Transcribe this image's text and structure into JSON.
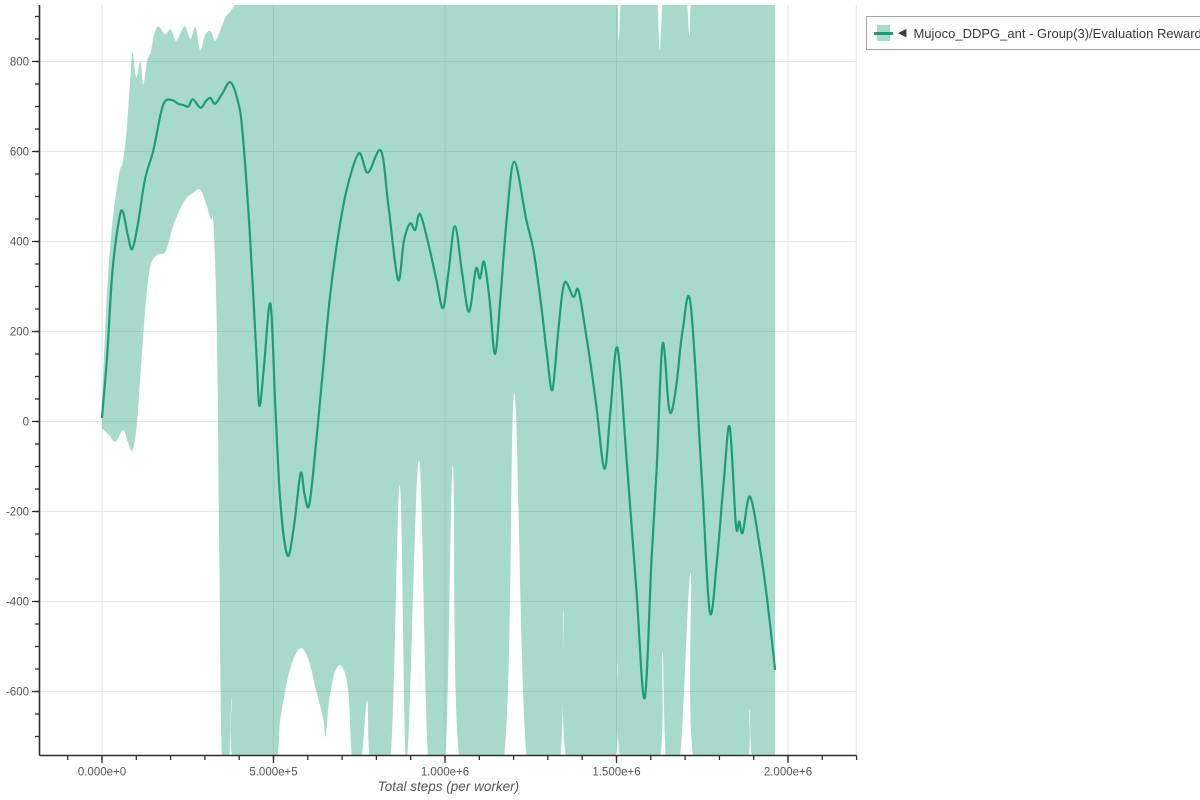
{
  "page": {
    "background": "#ffffff"
  },
  "legend": {
    "marker": "◀",
    "label": "Mujoco_DDPG_ant - Group(3)/Evaluation Reward"
  },
  "colors": {
    "line": "#1b9e77",
    "band": "rgba(27,158,119,0.38)",
    "grid": "#e6e6e6",
    "axis": "#2f2f2f",
    "tick_label": "#555555",
    "axis_title": "#555555",
    "legend_border": "#a6a6a6"
  },
  "chart_data": {
    "type": "line",
    "title": "",
    "xlabel": "Total steps (per worker)",
    "ylabel": "",
    "legend_position": "top-right-outside",
    "grid": true,
    "xlim": [
      -181000,
      2199000
    ],
    "ylim": [
      -742,
      926
    ],
    "x_ticks": {
      "major": [
        {
          "value": 0,
          "label": "0.000e+0"
        },
        {
          "value": 500000,
          "label": "5.000e+5"
        },
        {
          "value": 1000000,
          "label": "1.000e+6"
        },
        {
          "value": 1500000,
          "label": "1.500e+6"
        },
        {
          "value": 2000000,
          "label": "2.000e+6"
        }
      ],
      "minor_step": 100000,
      "minor_range": [
        -100000,
        2200000
      ]
    },
    "y_ticks": {
      "major": [
        {
          "value": 800,
          "label": "800"
        },
        {
          "value": 600,
          "label": "600"
        },
        {
          "value": 400,
          "label": "400"
        },
        {
          "value": 200,
          "label": "200"
        },
        {
          "value": 0,
          "label": "0"
        },
        {
          "value": -200,
          "label": "-200"
        },
        {
          "value": -400,
          "label": "-400"
        },
        {
          "value": -600,
          "label": "-600"
        }
      ],
      "minor_step": 50,
      "minor_range": [
        -700,
        900
      ]
    },
    "grid_x_extra": [
      2199000
    ],
    "series": [
      {
        "name": "Mujoco_DDPG_ant - Group(3)/Evaluation Reward",
        "color": "#1b9e77",
        "band_color": "rgba(27,158,119,0.38)",
        "mean": [
          [
            0,
            10
          ],
          [
            15000,
            145
          ],
          [
            30000,
            330
          ],
          [
            50000,
            450
          ],
          [
            61000,
            466
          ],
          [
            75000,
            415
          ],
          [
            88000,
            383
          ],
          [
            105000,
            440
          ],
          [
            125000,
            537
          ],
          [
            150000,
            603
          ],
          [
            170000,
            680
          ],
          [
            184000,
            712
          ],
          [
            205000,
            714
          ],
          [
            222000,
            706
          ],
          [
            238000,
            703
          ],
          [
            252000,
            700
          ],
          [
            265000,
            716
          ],
          [
            287000,
            697
          ],
          [
            303000,
            712
          ],
          [
            316000,
            719
          ],
          [
            330000,
            706
          ],
          [
            350000,
            728
          ],
          [
            374000,
            754
          ],
          [
            395000,
            715
          ],
          [
            409000,
            648
          ],
          [
            430000,
            430
          ],
          [
            450000,
            150
          ],
          [
            459000,
            35
          ],
          [
            472000,
            120
          ],
          [
            491000,
            262
          ],
          [
            505000,
            40
          ],
          [
            520000,
            -180
          ],
          [
            541000,
            -298
          ],
          [
            560000,
            -230
          ],
          [
            579000,
            -115
          ],
          [
            590000,
            -160
          ],
          [
            602000,
            -190
          ],
          [
            615000,
            -120
          ],
          [
            640000,
            80
          ],
          [
            665000,
            280
          ],
          [
            690000,
            420
          ],
          [
            715000,
            520
          ],
          [
            749000,
            596
          ],
          [
            775000,
            553
          ],
          [
            813000,
            602
          ],
          [
            835000,
            480
          ],
          [
            863000,
            315
          ],
          [
            880000,
            400
          ],
          [
            898000,
            440
          ],
          [
            913000,
            426
          ],
          [
            927000,
            461
          ],
          [
            950000,
            400
          ],
          [
            975000,
            315
          ],
          [
            994000,
            252
          ],
          [
            1010000,
            330
          ],
          [
            1029000,
            434
          ],
          [
            1050000,
            330
          ],
          [
            1070000,
            244
          ],
          [
            1090000,
            339
          ],
          [
            1102000,
            318
          ],
          [
            1114000,
            355
          ],
          [
            1130000,
            270
          ],
          [
            1146000,
            150
          ],
          [
            1162000,
            280
          ],
          [
            1180000,
            450
          ],
          [
            1202000,
            577
          ],
          [
            1237000,
            448
          ],
          [
            1258000,
            380
          ],
          [
            1281000,
            255
          ],
          [
            1297000,
            150
          ],
          [
            1313000,
            70
          ],
          [
            1330000,
            200
          ],
          [
            1348000,
            308
          ],
          [
            1374000,
            277
          ],
          [
            1389000,
            292
          ],
          [
            1410000,
            200
          ],
          [
            1427000,
            114
          ],
          [
            1442000,
            30
          ],
          [
            1465000,
            -105
          ],
          [
            1482000,
            20
          ],
          [
            1503000,
            163
          ],
          [
            1530000,
            -90
          ],
          [
            1558000,
            -375
          ],
          [
            1582000,
            -615
          ],
          [
            1602000,
            -308
          ],
          [
            1617000,
            -108
          ],
          [
            1634000,
            172
          ],
          [
            1652000,
            37
          ],
          [
            1662000,
            25
          ],
          [
            1676000,
            90
          ],
          [
            1693000,
            203
          ],
          [
            1716000,
            261
          ],
          [
            1749000,
            -130
          ],
          [
            1772000,
            -423
          ],
          [
            1793000,
            -308
          ],
          [
            1813000,
            -130
          ],
          [
            1830000,
            -12
          ],
          [
            1848000,
            -230
          ],
          [
            1858000,
            -222
          ],
          [
            1868000,
            -247
          ],
          [
            1889000,
            -167
          ],
          [
            1918000,
            -280
          ],
          [
            1940000,
            -400
          ],
          [
            1962000,
            -550
          ]
        ],
        "band_upper": [
          [
            0,
            45
          ],
          [
            15000,
            290
          ],
          [
            30000,
            440
          ],
          [
            50000,
            550
          ],
          [
            61000,
            578
          ],
          [
            72000,
            650
          ],
          [
            85000,
            790
          ],
          [
            90000,
            819
          ],
          [
            100000,
            765
          ],
          [
            112000,
            800
          ],
          [
            120000,
            748
          ],
          [
            132000,
            802
          ],
          [
            142000,
            820
          ],
          [
            152000,
            860
          ],
          [
            165000,
            878
          ],
          [
            184000,
            860
          ],
          [
            200000,
            872
          ],
          [
            215000,
            846
          ],
          [
            228000,
            862
          ],
          [
            242000,
            878
          ],
          [
            258000,
            850
          ],
          [
            272000,
            876
          ],
          [
            287000,
            824
          ],
          [
            300000,
            858
          ],
          [
            316000,
            868
          ],
          [
            330000,
            846
          ],
          [
            345000,
            870
          ],
          [
            360000,
            898
          ],
          [
            375000,
            912
          ],
          [
            388000,
            928
          ],
          [
            400000,
            960
          ],
          [
            500000,
            960
          ],
          [
            700000,
            960
          ],
          [
            900000,
            960
          ],
          [
            1100000,
            960
          ],
          [
            1300000,
            960
          ],
          [
            1400000,
            960
          ],
          [
            1494000,
            960
          ],
          [
            1506000,
            848
          ],
          [
            1518000,
            960
          ],
          [
            1566000,
            960
          ],
          [
            1614000,
            960
          ],
          [
            1626000,
            826
          ],
          [
            1638000,
            960
          ],
          [
            1670000,
            960
          ],
          [
            1701000,
            960
          ],
          [
            1713000,
            859
          ],
          [
            1725000,
            960
          ],
          [
            1800000,
            960
          ],
          [
            1900000,
            960
          ],
          [
            1962000,
            960
          ]
        ],
        "band_lower": [
          [
            0,
            -15
          ],
          [
            20000,
            -30
          ],
          [
            40000,
            -45
          ],
          [
            61000,
            -18
          ],
          [
            75000,
            -45
          ],
          [
            88000,
            -65
          ],
          [
            100000,
            -18
          ],
          [
            110000,
            80
          ],
          [
            125000,
            240
          ],
          [
            140000,
            341
          ],
          [
            160000,
            370
          ],
          [
            185000,
            378
          ],
          [
            210000,
            440
          ],
          [
            240000,
            490
          ],
          [
            265000,
            508
          ],
          [
            287000,
            515
          ],
          [
            305000,
            480
          ],
          [
            318000,
            448
          ],
          [
            325000,
            440
          ],
          [
            335000,
            200
          ],
          [
            342000,
            -300
          ],
          [
            350000,
            -760
          ],
          [
            370000,
            -760
          ],
          [
            378000,
            -615
          ],
          [
            386000,
            -760
          ],
          [
            500000,
            -760
          ],
          [
            520000,
            -660
          ],
          [
            545000,
            -560
          ],
          [
            575000,
            -505
          ],
          [
            600000,
            -525
          ],
          [
            625000,
            -600
          ],
          [
            645000,
            -660
          ],
          [
            652000,
            -700
          ],
          [
            662000,
            -620
          ],
          [
            680000,
            -555
          ],
          [
            700000,
            -545
          ],
          [
            718000,
            -600
          ],
          [
            731000,
            -760
          ],
          [
            755000,
            -760
          ],
          [
            773000,
            -620
          ],
          [
            784000,
            -760
          ],
          [
            840000,
            -760
          ],
          [
            868000,
            -140
          ],
          [
            888000,
            -760
          ],
          [
            924000,
            -85
          ],
          [
            952000,
            -760
          ],
          [
            1000000,
            -760
          ],
          [
            1023000,
            -97
          ],
          [
            1044000,
            -760
          ],
          [
            1170000,
            -760
          ],
          [
            1202000,
            62
          ],
          [
            1240000,
            -760
          ],
          [
            1333000,
            -760
          ],
          [
            1345000,
            -419
          ],
          [
            1357000,
            -760
          ],
          [
            1491000,
            -760
          ],
          [
            1503000,
            -537
          ],
          [
            1515000,
            -760
          ],
          [
            1623000,
            -760
          ],
          [
            1634000,
            -512
          ],
          [
            1646000,
            -760
          ],
          [
            1684000,
            -760
          ],
          [
            1716000,
            -337
          ],
          [
            1728000,
            -760
          ],
          [
            1874000,
            -760
          ],
          [
            1887000,
            -640
          ],
          [
            1900000,
            -760
          ],
          [
            1962000,
            -760
          ]
        ]
      }
    ]
  }
}
